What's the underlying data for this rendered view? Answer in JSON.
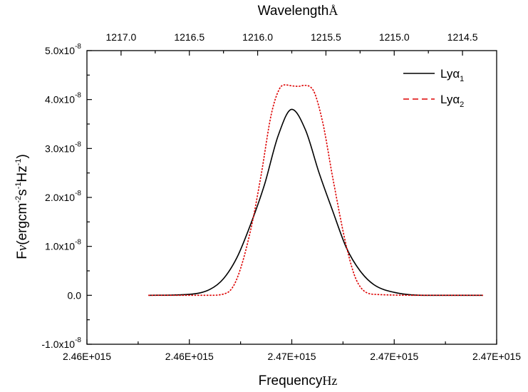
{
  "chart_data": {
    "type": "line",
    "title": "",
    "xlabel": "Frequency",
    "xlabel_unit": "Hz",
    "x2label": "Wavelength",
    "x2label_unit": "Å",
    "ylabel_parts": {
      "base": "F",
      "nu": "ν",
      "open": "(ergcm",
      "exp1": "-2",
      "s": "s",
      "exp2": "-1",
      "hz": "Hz",
      "exp3": "-1",
      "close": ")"
    },
    "x_range": [
      0,
      6
    ],
    "ylim": [
      -1e-08,
      5e-08
    ],
    "x_ticks": [
      {
        "value": 0,
        "label": "2.46E+015"
      },
      {
        "value": 1.5,
        "label": "2.46E+015"
      },
      {
        "value": 3,
        "label": "2.47E+015"
      },
      {
        "value": 4.5,
        "label": "2.47E+015"
      },
      {
        "value": 6,
        "label": "2.47E+015"
      }
    ],
    "x2_ticks": [
      {
        "value": 0.5,
        "label": "1217.0"
      },
      {
        "value": 1.5,
        "label": "1216.5"
      },
      {
        "value": 2.5,
        "label": "1216.0"
      },
      {
        "value": 3.5,
        "label": "1215.5"
      },
      {
        "value": 4.5,
        "label": "1215.0"
      },
      {
        "value": 5.5,
        "label": "1214.5"
      }
    ],
    "y_ticks": [
      {
        "value": -1e-08,
        "label": "-1.0x10",
        "exp": "-8"
      },
      {
        "value": 0,
        "label": "0.0",
        "exp": ""
      },
      {
        "value": 1e-08,
        "label": "1.0x10",
        "exp": "-8"
      },
      {
        "value": 2e-08,
        "label": "2.0x10",
        "exp": "-8"
      },
      {
        "value": 3e-08,
        "label": "3.0x10",
        "exp": "-8"
      },
      {
        "value": 4e-08,
        "label": "4.0x10",
        "exp": "-8"
      },
      {
        "value": 5e-08,
        "label": "5.0x10",
        "exp": "-8"
      }
    ],
    "legend_position": "top-right",
    "series": [
      {
        "name": "Lyα",
        "subscript": "1",
        "color": "#000000",
        "dash": "solid",
        "x": [
          0.9,
          1.5,
          1.8,
          2.0,
          2.2,
          2.4,
          2.6,
          2.8,
          3.0,
          3.2,
          3.4,
          3.6,
          3.8,
          4.0,
          4.2,
          4.5,
          5.0,
          5.8
        ],
        "y": [
          0,
          2e-10,
          1.2e-09,
          3.4e-09,
          7.8e-09,
          1.46e-08,
          2.26e-08,
          3.26e-08,
          3.8e-08,
          3.38e-08,
          2.5e-08,
          1.72e-08,
          9.7e-09,
          5e-09,
          2.2e-09,
          6e-10,
          0,
          0
        ]
      },
      {
        "name": "Lyα",
        "subscript": "2",
        "color": "#dd0000",
        "dash": "dashed",
        "x": [
          0.9,
          1.8,
          2.05,
          2.2,
          2.4,
          2.55,
          2.7,
          2.82,
          2.9,
          3.0,
          3.1,
          3.18,
          3.3,
          3.45,
          3.6,
          3.8,
          3.95,
          4.2,
          5.0,
          5.8
        ],
        "y": [
          0,
          0,
          5e-10,
          3.5e-09,
          1.35e-08,
          2.45e-08,
          3.7e-08,
          4.22e-08,
          4.3e-08,
          4.28e-08,
          4.27e-08,
          4.29e-08,
          4.22e-08,
          3.55e-08,
          2.4e-08,
          1e-08,
          3e-09,
          2e-10,
          0,
          0
        ]
      }
    ]
  }
}
